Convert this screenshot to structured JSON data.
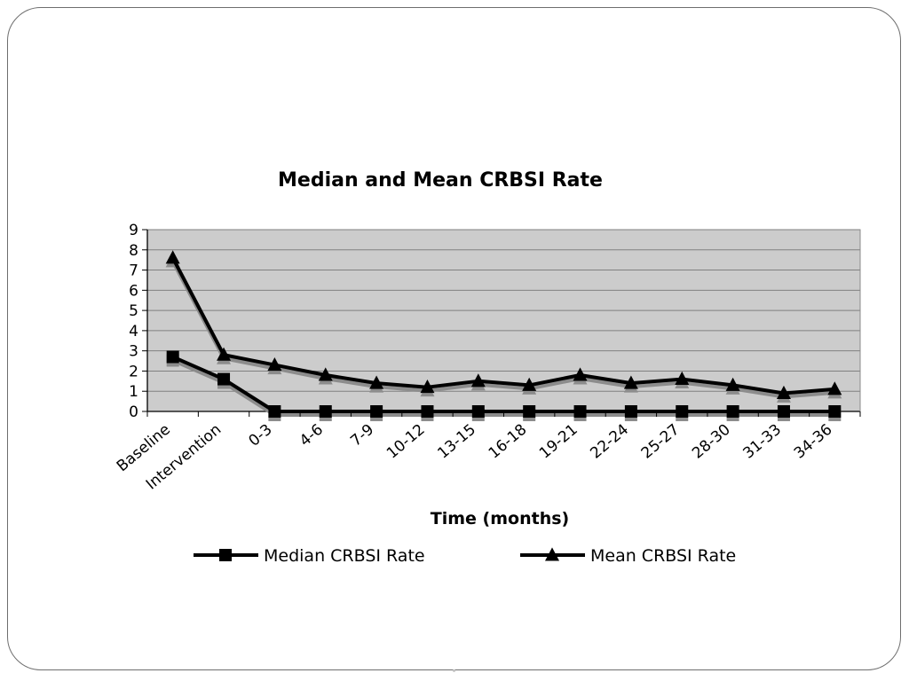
{
  "chart_data": {
    "type": "line",
    "title": "Median and Mean CRBSI Rate",
    "xlabel": "Time (months)",
    "ylabel": "",
    "ylim": [
      0,
      9
    ],
    "yticks": [
      "0",
      "1",
      "2",
      "3",
      "4",
      "5",
      "6",
      "7",
      "8",
      "9"
    ],
    "grid": true,
    "legend": "bottom",
    "categories": [
      "Baseline",
      "Intervention",
      "0-3",
      "4-6",
      "7-9",
      "10-12",
      "13-15",
      "16-18",
      "19-21",
      "22-24",
      "25-27",
      "28-30",
      "31-33",
      "34-36"
    ],
    "series": [
      {
        "name": "Median CRBSI Rate",
        "marker": "square",
        "values": [
          2.7,
          1.6,
          0,
          0,
          0,
          0,
          0,
          0,
          0,
          0,
          0,
          0,
          0,
          0
        ]
      },
      {
        "name": "Mean CRBSI Rate",
        "marker": "triangle",
        "values": [
          7.6,
          2.8,
          2.3,
          1.8,
          1.4,
          1.2,
          1.5,
          1.3,
          1.8,
          1.4,
          1.6,
          1.3,
          0.9,
          1.1
        ]
      }
    ],
    "colors": {
      "plot_bg": "#cccccc",
      "line": "#000000",
      "shadow": "#8c8c8c",
      "grid": "#808080"
    }
  }
}
